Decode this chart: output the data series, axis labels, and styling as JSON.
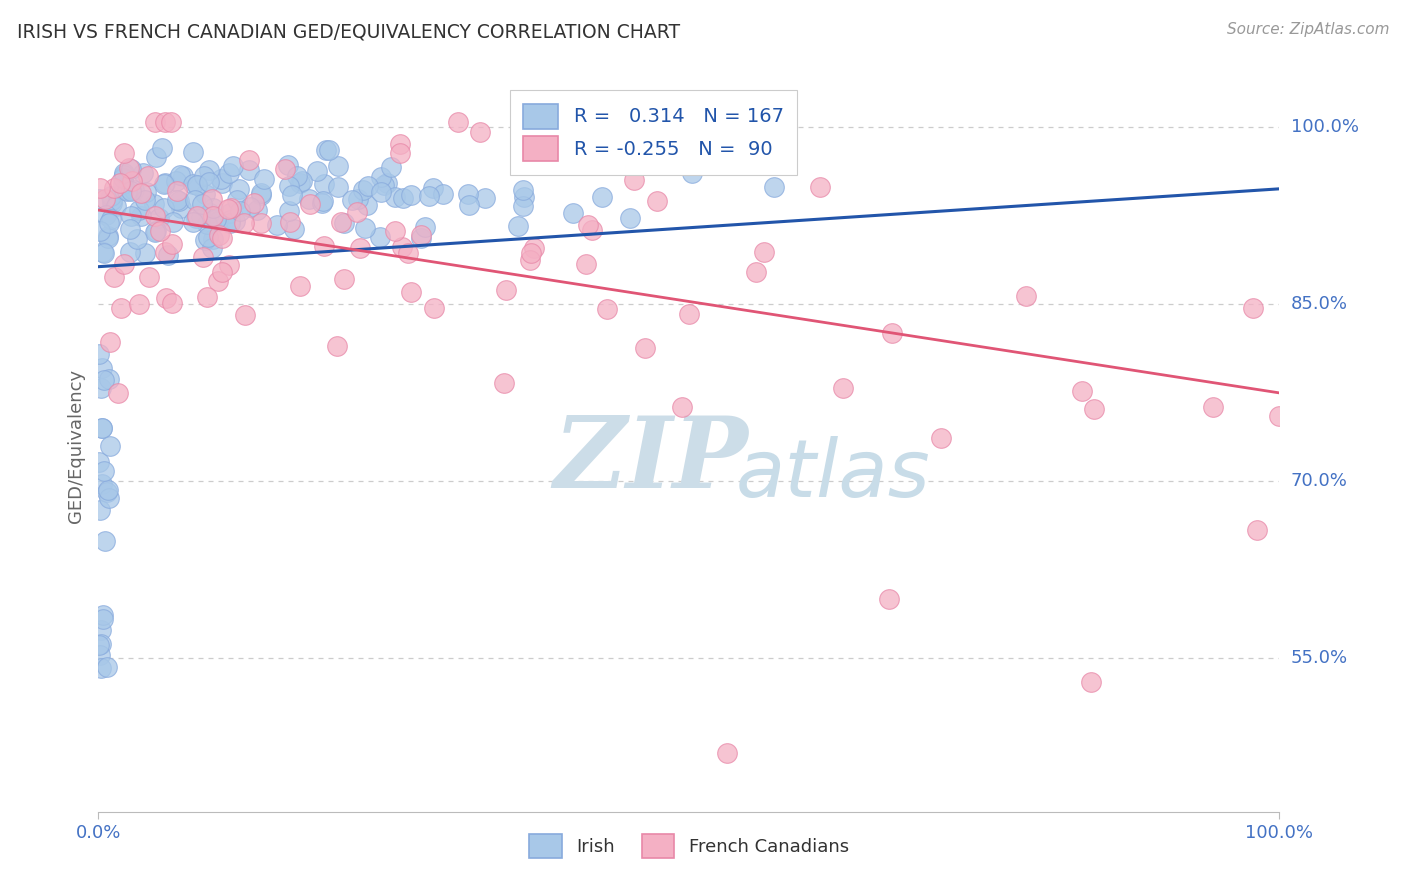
{
  "title": "IRISH VS FRENCH CANADIAN GED/EQUIVALENCY CORRELATION CHART",
  "source": "Source: ZipAtlas.com",
  "ylabel": "GED/Equivalency",
  "ytick_labels": [
    "55.0%",
    "70.0%",
    "85.0%",
    "100.0%"
  ],
  "ytick_values": [
    0.55,
    0.7,
    0.85,
    1.0
  ],
  "xlim": [
    0.0,
    1.0
  ],
  "ylim": [
    0.42,
    1.04
  ],
  "irish_R": 0.314,
  "irish_N": 167,
  "french_R": -0.255,
  "french_N": 90,
  "irish_color": "#a8c8e8",
  "irish_line_color": "#2255aa",
  "french_color": "#f4b0c4",
  "french_line_color": "#e05575",
  "irish_marker_edge": "#88aadd",
  "french_marker_edge": "#e888a8",
  "background_color": "#ffffff",
  "grid_color": "#cccccc",
  "title_color": "#333333",
  "axis_label_color": "#4472c4",
  "source_color": "#999999",
  "watermark_zip_color": "#d8e8f0",
  "watermark_atlas_color": "#d0e8f8",
  "legend_color": "#2255aa",
  "irish_line_start_y": 0.882,
  "irish_line_end_y": 0.948,
  "french_line_start_y": 0.93,
  "french_line_end_y": 0.775
}
